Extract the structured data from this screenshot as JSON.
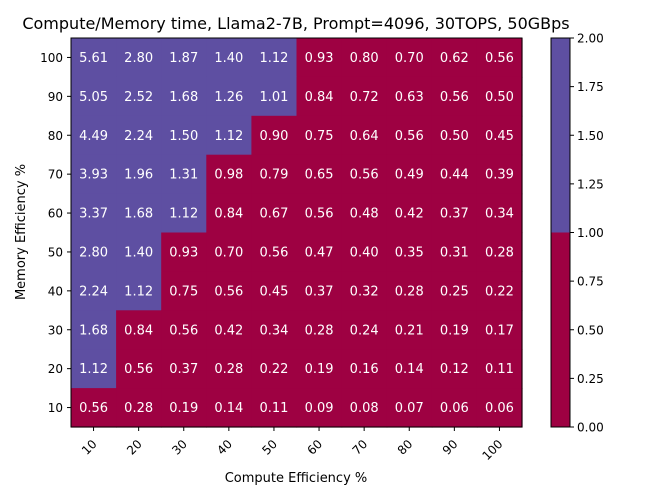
{
  "chart_data": {
    "type": "heatmap",
    "title": "Compute/Memory time, Llama2-7B, Prompt=4096, 30TOPS, 50GBps",
    "xlabel": "Compute Efficiency %",
    "ylabel": "Memory Efficiency %",
    "x_categories": [
      "10",
      "20",
      "30",
      "40",
      "50",
      "60",
      "70",
      "80",
      "90",
      "100"
    ],
    "y_categories": [
      "100",
      "90",
      "80",
      "70",
      "60",
      "50",
      "40",
      "30",
      "20",
      "10"
    ],
    "values": [
      [
        5.61,
        2.8,
        1.87,
        1.4,
        1.12,
        0.93,
        0.8,
        0.7,
        0.62,
        0.56
      ],
      [
        5.05,
        2.52,
        1.68,
        1.26,
        1.01,
        0.84,
        0.72,
        0.63,
        0.56,
        0.5
      ],
      [
        4.49,
        2.24,
        1.5,
        1.12,
        0.9,
        0.75,
        0.64,
        0.56,
        0.5,
        0.45
      ],
      [
        3.93,
        1.96,
        1.31,
        0.98,
        0.79,
        0.65,
        0.56,
        0.49,
        0.44,
        0.39
      ],
      [
        3.37,
        1.68,
        1.12,
        0.84,
        0.67,
        0.56,
        0.48,
        0.42,
        0.37,
        0.34
      ],
      [
        2.8,
        1.4,
        0.93,
        0.7,
        0.56,
        0.47,
        0.4,
        0.35,
        0.31,
        0.28
      ],
      [
        2.24,
        1.12,
        0.75,
        0.56,
        0.45,
        0.37,
        0.32,
        0.28,
        0.25,
        0.22
      ],
      [
        1.68,
        0.84,
        0.56,
        0.42,
        0.34,
        0.28,
        0.24,
        0.21,
        0.19,
        0.17
      ],
      [
        1.12,
        0.56,
        0.37,
        0.28,
        0.22,
        0.19,
        0.16,
        0.14,
        0.12,
        0.11
      ],
      [
        0.56,
        0.28,
        0.19,
        0.14,
        0.11,
        0.09,
        0.08,
        0.07,
        0.06,
        0.06
      ]
    ],
    "threshold": 1.0,
    "colors": {
      "above": "#5e4fa2",
      "below": "#9e0142"
    },
    "colorbar": {
      "range": [
        0.0,
        2.0
      ],
      "ticks": [
        "0.00",
        "0.25",
        "0.50",
        "0.75",
        "1.00",
        "1.25",
        "1.50",
        "1.75",
        "2.00"
      ]
    },
    "grid": false,
    "legend": "colorbar-right"
  }
}
